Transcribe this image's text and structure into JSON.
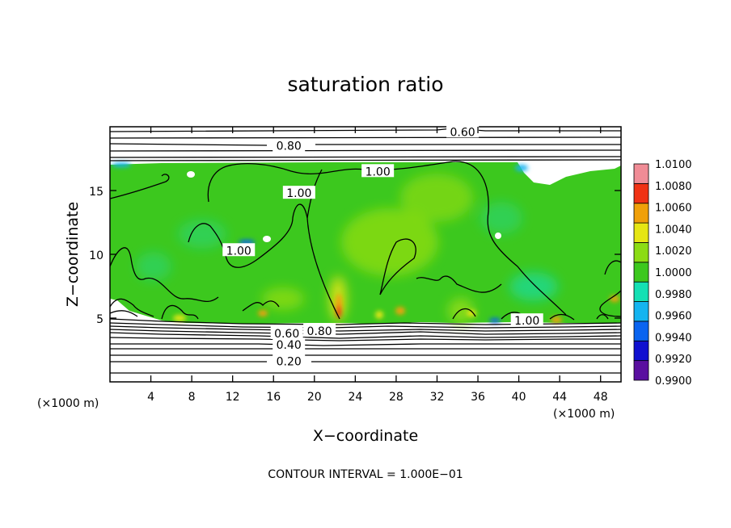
{
  "chart_data": {
    "type": "heatmap",
    "title": "saturation ratio",
    "xlabel": "X−coordinate",
    "ylabel": "Z−coordinate",
    "x_unit_left": "(×1000 m)",
    "x_unit_right": "(×1000 m)",
    "footer": "CONTOUR INTERVAL = 1.000E−01",
    "xlim": [
      0,
      50
    ],
    "ylim": [
      0,
      20
    ],
    "x_ticks": [
      4,
      8,
      12,
      16,
      20,
      24,
      28,
      32,
      36,
      40,
      44,
      48
    ],
    "x_tick_labels": [
      "4",
      "8",
      "12",
      "16",
      "20",
      "24",
      "28",
      "32",
      "36",
      "40",
      "44",
      "48"
    ],
    "y_ticks": [
      5,
      10,
      15
    ],
    "y_tick_labels": [
      "5",
      "10",
      "15"
    ],
    "contour_interval": 0.1,
    "colorbar": {
      "levels": [
        0.99,
        0.992,
        0.994,
        0.996,
        0.998,
        1.0,
        1.002,
        1.004,
        1.006,
        1.008,
        1.01
      ],
      "labels": [
        "0.9900",
        "0.9920",
        "0.9940",
        "0.9960",
        "0.9980",
        "1.0000",
        "1.0020",
        "1.0040",
        "1.0060",
        "1.0080",
        "1.0100"
      ],
      "colors": [
        "#5a0fa0",
        "#1010d0",
        "#0a64f0",
        "#14b4f0",
        "#14e0b4",
        "#3cc81e",
        "#8cdc14",
        "#e6e614",
        "#f0a00a",
        "#f03214",
        "#f08c96"
      ]
    },
    "background_fill_color": "#3cc81e",
    "contour_labels": [
      {
        "text": "0.60",
        "x": 34.5,
        "z": 19.6
      },
      {
        "text": "0.80",
        "x": 17.5,
        "z": 18.5
      },
      {
        "text": "1.00",
        "x": 26.2,
        "z": 16.5
      },
      {
        "text": "1.00",
        "x": 18.5,
        "z": 14.8
      },
      {
        "text": "1.00",
        "x": 12.6,
        "z": 10.3
      },
      {
        "text": "1.00",
        "x": 40.8,
        "z": 4.8
      },
      {
        "text": "0.60",
        "x": 17.3,
        "z": 3.8
      },
      {
        "text": "0.80",
        "x": 20.5,
        "z": 4.0
      },
      {
        "text": "0.40",
        "x": 17.5,
        "z": 2.9
      },
      {
        "text": "0.20",
        "x": 17.5,
        "z": 1.6
      }
    ]
  }
}
